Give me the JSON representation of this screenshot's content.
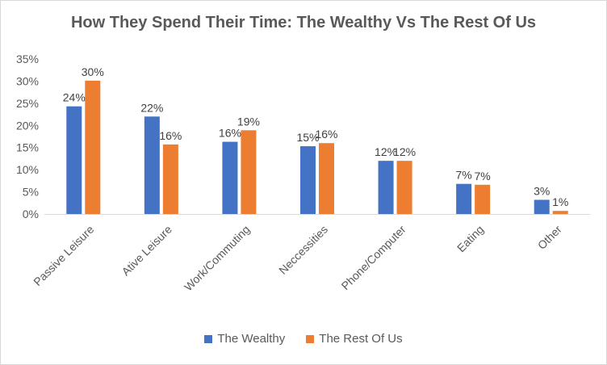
{
  "chart_data": {
    "type": "bar",
    "title": "How They Spend Their Time: The Wealthy Vs The Rest Of Us",
    "categories": [
      "Passive Leisure",
      "Ative Leisure",
      "Work/Commuting",
      "Neccessities",
      "Phone/Computer",
      "Eating",
      "Other"
    ],
    "series": [
      {
        "name": "The Wealthy",
        "color": "#4472c4",
        "values": [
          24.3,
          22.0,
          16.3,
          15.3,
          12.0,
          6.8,
          3.2
        ],
        "labels": [
          "24%",
          "22%",
          "16%",
          "15%",
          "12%",
          "7%",
          "3%"
        ]
      },
      {
        "name": "The Rest Of Us",
        "color": "#ed7d31",
        "values": [
          30.1,
          15.7,
          18.9,
          16.0,
          12.0,
          6.6,
          0.7
        ],
        "labels": [
          "30%",
          "16%",
          "19%",
          "16%",
          "12%",
          "7%",
          "1%"
        ]
      }
    ],
    "yticks": [
      "0%",
      "5%",
      "10%",
      "15%",
      "20%",
      "25%",
      "30%",
      "35%"
    ],
    "ylim": [
      0,
      35
    ],
    "xlabel": "",
    "ylabel": "",
    "grid": false,
    "legend_position": "bottom"
  }
}
